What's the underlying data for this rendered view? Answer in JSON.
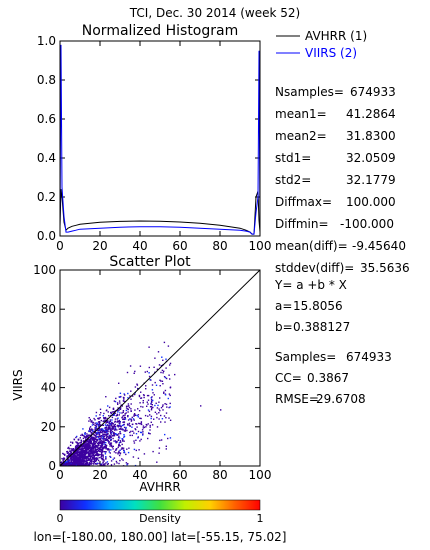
{
  "header": {
    "title": "TCI,  Dec. 30 2014 (week 52)",
    "footer": "lon=[-180.00, 180.00] lat=[-55.15, 75.02]"
  },
  "colors": {
    "avhrr_line": "#000000",
    "viirs_line": "#0000ff",
    "background": "#ffffff"
  },
  "chart_data": [
    {
      "type": "line",
      "title": "Normalized Histogram",
      "xlabel": "",
      "ylabel": "",
      "xlim": [
        0,
        100
      ],
      "ylim": [
        0.0,
        1.0
      ],
      "xticks": [
        "0",
        "20",
        "40",
        "60",
        "80",
        "100"
      ],
      "yticks": [
        "0.0",
        "0.2",
        "0.4",
        "0.6",
        "0.8",
        "1.0"
      ],
      "legend": {
        "placement": "right"
      },
      "series": [
        {
          "name": "AVHRR  (1)",
          "color": "#000000",
          "x": [
            0,
            0.5,
            1,
            2,
            3,
            4,
            6,
            8,
            10,
            20,
            30,
            40,
            50,
            60,
            70,
            80,
            90,
            93,
            95,
            96,
            97,
            98,
            99,
            99.5,
            100
          ],
          "y": [
            0.05,
            0.24,
            0.2,
            0.07,
            0.03,
            0.04,
            0.05,
            0.055,
            0.06,
            0.07,
            0.075,
            0.077,
            0.076,
            0.072,
            0.065,
            0.055,
            0.04,
            0.03,
            0.02,
            0.01,
            0.01,
            0.2,
            0.23,
            0.08,
            0.02
          ]
        },
        {
          "name": "VIIRS  (2)",
          "color": "#0000ff",
          "x": [
            0,
            0.5,
            1,
            2,
            3,
            4,
            6,
            8,
            10,
            20,
            30,
            40,
            50,
            60,
            70,
            80,
            90,
            93,
            95,
            96,
            97,
            98,
            99,
            99.5,
            100
          ],
          "y": [
            0.02,
            0.98,
            0.25,
            0.1,
            0.02,
            0.02,
            0.025,
            0.03,
            0.035,
            0.04,
            0.045,
            0.047,
            0.047,
            0.045,
            0.04,
            0.035,
            0.03,
            0.025,
            0.02,
            0.01,
            0.01,
            0.12,
            0.2,
            0.95,
            0.02
          ]
        }
      ],
      "stats": [
        {
          "label": "Nsamples=",
          "value": "674933"
        },
        {
          "label": "mean1=",
          "value": "41.2864"
        },
        {
          "label": "mean2=",
          "value": "31.8300"
        },
        {
          "label": "std1=",
          "value": "32.0509"
        },
        {
          "label": "std2=",
          "value": "32.1779"
        },
        {
          "label": "Diffmax=",
          "value": "100.000"
        },
        {
          "label": "Diffmin=",
          "value": "-100.000"
        },
        {
          "label": "mean(diff)=",
          "value": "-9.45640"
        },
        {
          "label": "stddev(diff)=",
          "value": "35.5636"
        }
      ]
    },
    {
      "type": "scatter",
      "title": "Scatter Plot",
      "xlabel": "AVHRR",
      "ylabel": "VIIRS",
      "xlim": [
        0,
        100
      ],
      "ylim": [
        0,
        100
      ],
      "xticks": [
        "0",
        "20",
        "40",
        "60",
        "80",
        "100"
      ],
      "yticks": [
        "0",
        "20",
        "40",
        "60",
        "80",
        "100"
      ],
      "reference_line": {
        "from": [
          0,
          0
        ],
        "to": [
          100,
          100
        ]
      },
      "fit": {
        "equation": "Y= a +b * X",
        "a": "15.8056",
        "b": "0.388127"
      },
      "stats": [
        {
          "label": "Samples=",
          "value": "674933"
        },
        {
          "label": "CC=",
          "value": "0.3867"
        },
        {
          "label": "RMSE=",
          "value": "29.6708"
        }
      ],
      "colorbar": {
        "label": "Density",
        "min_label": "0",
        "max_label": "1",
        "colors": [
          "#3c00a0",
          "#1030ff",
          "#00a0ff",
          "#00e0c0",
          "#40e040",
          "#c0f000",
          "#ffd000",
          "#ff6000",
          "#ff0000"
        ]
      }
    }
  ]
}
